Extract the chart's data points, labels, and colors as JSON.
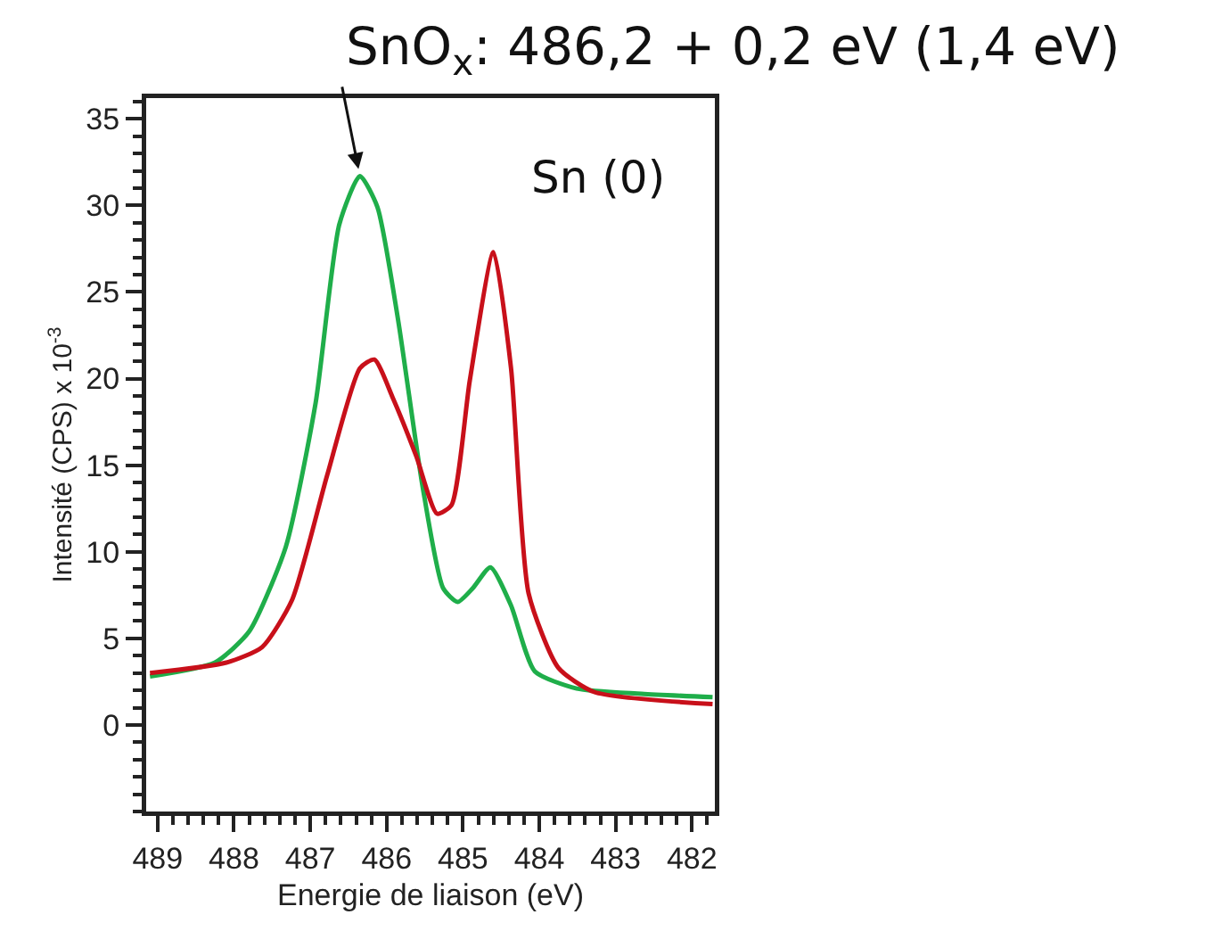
{
  "chart_data": {
    "type": "line",
    "xlabel": "Energie de liaison (eV)",
    "ylabel": "Intensité (CPS) x 10$^{-3}$",
    "xlim": [
      489.15,
      481.7
    ],
    "xticks": [
      489,
      488,
      487,
      486,
      485,
      484,
      483,
      482
    ],
    "ylim": [
      -5,
      36.2
    ],
    "yticks": [
      0,
      5,
      10,
      15,
      20,
      25,
      30,
      35
    ],
    "line_style": "solid",
    "marker": "none",
    "series": [
      {
        "color": "#1fae4a",
        "x": [
          489.1,
          488.25,
          487.8,
          487.32,
          486.93,
          486.62,
          486.35,
          486.12,
          485.85,
          485.53,
          485.26,
          485.07,
          484.87,
          484.64,
          484.37,
          484.06,
          483.51,
          482.66,
          481.73
        ],
        "values": [
          2.8,
          3.6,
          5.4,
          10.3,
          18.6,
          28.9,
          31.7,
          29.9,
          23.4,
          13.8,
          7.9,
          7.1,
          7.9,
          9.1,
          6.9,
          3.1,
          2.1,
          1.8,
          1.6
        ]
      },
      {
        "color": "#c8101a",
        "x": [
          489.1,
          488.1,
          487.63,
          487.24,
          486.78,
          486.35,
          486.16,
          485.92,
          485.61,
          485.34,
          485.15,
          484.91,
          484.6,
          484.37,
          484.14,
          483.75,
          483.28,
          481.73
        ],
        "values": [
          3.0,
          3.6,
          4.5,
          7.2,
          14.4,
          20.6,
          21.1,
          18.9,
          15.5,
          12.2,
          12.7,
          19.9,
          27.3,
          20.6,
          7.6,
          3.3,
          1.9,
          1.2
        ]
      }
    ],
    "annotations": [
      {
        "text": "SnO$_{x}$: 486,2 + 0,2 eV (1,4 eV)",
        "x": 486.35,
        "y": 31.7
      },
      "Sn (0)"
    ]
  }
}
